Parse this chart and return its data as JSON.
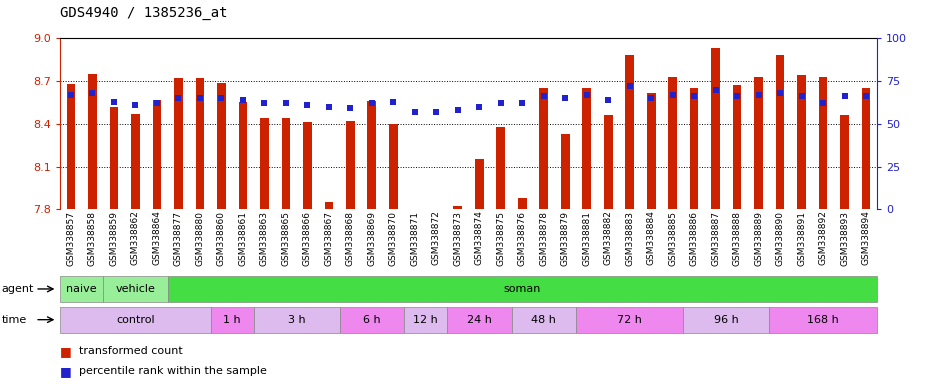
{
  "title": "GDS4940 / 1385236_at",
  "samples": [
    "GSM338857",
    "GSM338858",
    "GSM338859",
    "GSM338862",
    "GSM338864",
    "GSM338877",
    "GSM338880",
    "GSM338860",
    "GSM338861",
    "GSM338863",
    "GSM338865",
    "GSM338866",
    "GSM338867",
    "GSM338868",
    "GSM338869",
    "GSM338870",
    "GSM338871",
    "GSM338872",
    "GSM338873",
    "GSM338874",
    "GSM338875",
    "GSM338876",
    "GSM338878",
    "GSM338879",
    "GSM338881",
    "GSM338882",
    "GSM338883",
    "GSM338884",
    "GSM338885",
    "GSM338886",
    "GSM338887",
    "GSM338888",
    "GSM338889",
    "GSM338890",
    "GSM338891",
    "GSM338892",
    "GSM338893",
    "GSM338894"
  ],
  "bar_values": [
    8.68,
    8.75,
    8.52,
    8.47,
    8.57,
    8.72,
    8.72,
    8.69,
    8.55,
    8.44,
    8.44,
    8.41,
    7.85,
    8.42,
    8.56,
    8.4,
    7.8,
    7.8,
    7.82,
    8.15,
    8.38,
    7.88,
    8.65,
    8.33,
    8.65,
    8.46,
    8.88,
    8.62,
    8.73,
    8.65,
    8.93,
    8.67,
    8.73,
    8.88,
    8.74,
    8.73,
    8.46,
    8.65
  ],
  "percentile_values": [
    67,
    68,
    63,
    61,
    62,
    65,
    65,
    65,
    64,
    62,
    62,
    61,
    60,
    59,
    62,
    63,
    57,
    57,
    58,
    60,
    62,
    62,
    66,
    65,
    67,
    64,
    72,
    65,
    67,
    66,
    70,
    66,
    67,
    68,
    66,
    62,
    66,
    66
  ],
  "ylim_left": [
    7.8,
    9.0
  ],
  "ylim_right": [
    0,
    100
  ],
  "yticks_left": [
    7.8,
    8.1,
    8.4,
    8.7,
    9.0
  ],
  "yticks_right": [
    0,
    25,
    50,
    75,
    100
  ],
  "bar_color": "#cc2200",
  "dot_color": "#2222cc",
  "background_color": "#ffffff",
  "agent_blocks": [
    {
      "label": "naive",
      "start": 0,
      "end": 1,
      "color": "#99ee99"
    },
    {
      "label": "vehicle",
      "start": 2,
      "end": 4,
      "color": "#99ee99"
    },
    {
      "label": "soman",
      "start": 5,
      "end": 37,
      "color": "#44dd44"
    }
  ],
  "time_blocks": [
    {
      "label": "control",
      "start": 0,
      "end": 6,
      "color": "#ddbbee"
    },
    {
      "label": "1 h",
      "start": 7,
      "end": 8,
      "color": "#ee88ee"
    },
    {
      "label": "3 h",
      "start": 9,
      "end": 12,
      "color": "#ddbbee"
    },
    {
      "label": "6 h",
      "start": 13,
      "end": 15,
      "color": "#ee88ee"
    },
    {
      "label": "12 h",
      "start": 16,
      "end": 17,
      "color": "#ddbbee"
    },
    {
      "label": "24 h",
      "start": 18,
      "end": 20,
      "color": "#ee88ee"
    },
    {
      "label": "48 h",
      "start": 21,
      "end": 23,
      "color": "#ddbbee"
    },
    {
      "label": "72 h",
      "start": 24,
      "end": 28,
      "color": "#ee88ee"
    },
    {
      "label": "96 h",
      "start": 29,
      "end": 32,
      "color": "#ddbbee"
    },
    {
      "label": "168 h",
      "start": 33,
      "end": 37,
      "color": "#ee88ee"
    }
  ]
}
